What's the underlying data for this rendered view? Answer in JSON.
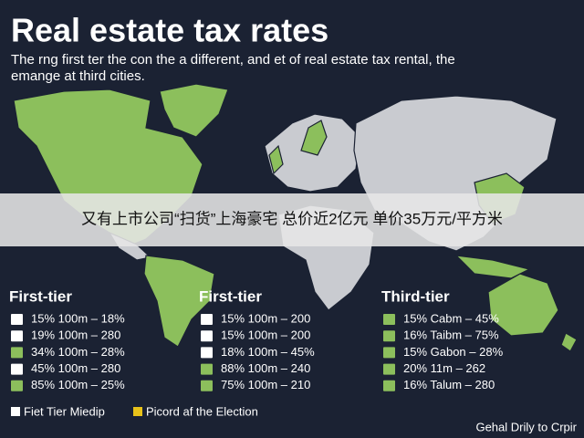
{
  "header": {
    "title": "Real estate tax rates",
    "subtitle_lines": [
      "The rng first ter the con the a different, and et of real estate tax rental, the",
      "emange at third cities."
    ]
  },
  "banner": "又有上市公司“扫货”上海豪宅 总价近2亿元 单价35万元/平方米",
  "legend_columns": [
    {
      "heading": "First-tier",
      "rows": [
        {
          "text": "15% 100m – 18%",
          "color": "#ffffff"
        },
        {
          "text": "19% 100m – 280",
          "color": "#ffffff"
        },
        {
          "text": "34% 100m – 28%",
          "color": "#8cbf5c"
        },
        {
          "text": "45% 100m – 280",
          "color": "#ffffff"
        },
        {
          "text": "85% 100m – 25%",
          "color": "#8cbf5c"
        }
      ]
    },
    {
      "heading": "First-tier",
      "rows": [
        {
          "text": "15% 100m – 200",
          "color": "#ffffff"
        },
        {
          "text": "15% 100m – 200",
          "color": "#ffffff"
        },
        {
          "text": "18% 100m – 45%",
          "color": "#ffffff"
        },
        {
          "text": "88% 100m – 240",
          "color": "#8cbf5c"
        },
        {
          "text": "75% 100m – 210",
          "color": "#8cbf5c"
        }
      ]
    },
    {
      "heading": "Third-tier",
      "rows": [
        {
          "text": "15% Cabm – 45%",
          "color": "#8cbf5c"
        },
        {
          "text": "16% Taibm – 75%",
          "color": "#8cbf5c"
        },
        {
          "text": "15% Gabon – 28%",
          "color": "#8cbf5c"
        },
        {
          "text": "20% 11m – 262",
          "color": "#8cbf5c"
        },
        {
          "text": "16% Talum – 280",
          "color": "#8cbf5c"
        }
      ]
    }
  ],
  "footer_legend": [
    {
      "text": "Fiet Tier Miedip",
      "color": "#ffffff"
    },
    {
      "text": "Picord af the Election",
      "color": "#e8c21a"
    }
  ],
  "credit": "Gehal Drily to Crpir"
}
